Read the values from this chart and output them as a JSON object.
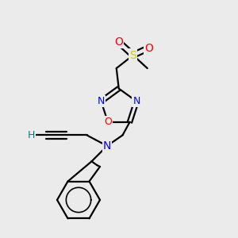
{
  "bg_color": "#ebebeb",
  "atom_colors": {
    "C": "#000000",
    "N": "#0000ff",
    "O": "#ff0000",
    "S": "#cccc00",
    "H": "#008080"
  },
  "bond_color": "#000000",
  "bond_width": 1.6,
  "font_size": 9,
  "fig_size": [
    3.0,
    3.0
  ],
  "dpi": 100
}
